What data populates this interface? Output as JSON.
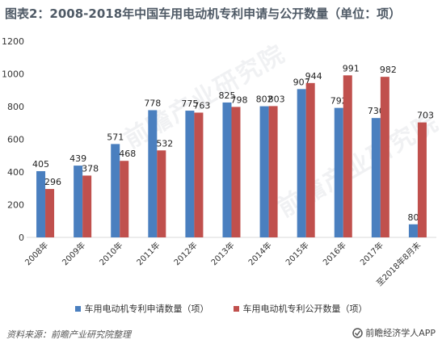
{
  "title": "图表2：2008-2018年中国车用电动机专利申请与公开数量（单位：项）",
  "footer": {
    "source": "资料来源：前瞻产业研究院整理",
    "brand": "前瞻经济学人APP"
  },
  "watermark_text": "前瞻产业研究院",
  "colors": {
    "series1": "#4a7fbf",
    "series2": "#c0504d",
    "axis": "#d9d9d9"
  },
  "chart_data": {
    "type": "bar",
    "categories": [
      "2008年",
      "2009年",
      "2010年",
      "2011年",
      "2012年",
      "2013年",
      "2014年",
      "2015年",
      "2016年",
      "2017年",
      "至2018年8月末"
    ],
    "series": [
      {
        "name": "车用电动机专利申请数量（项）",
        "values": [
          405,
          439,
          571,
          778,
          775,
          825,
          802,
          907,
          792,
          730,
          80
        ]
      },
      {
        "name": "车用电动机专利公开数量（项）",
        "values": [
          296,
          378,
          468,
          532,
          763,
          798,
          803,
          944,
          991,
          982,
          703
        ]
      }
    ],
    "ylim": [
      0,
      1200
    ],
    "yticks": [
      "0",
      "200",
      "400",
      "600",
      "800",
      "1000",
      "1200"
    ],
    "grid": false,
    "legend_position": "bottom"
  }
}
